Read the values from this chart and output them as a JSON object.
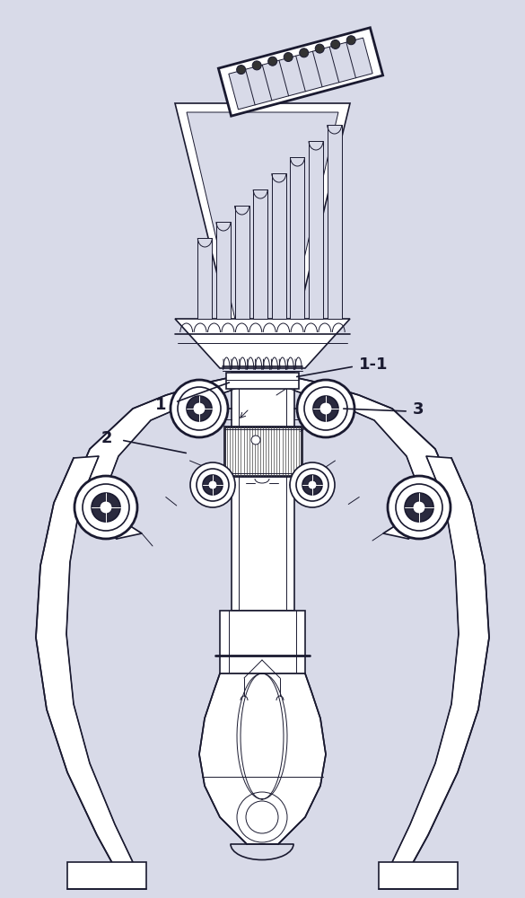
{
  "bg_color": "#d8dae8",
  "line_color": "#1a1a30",
  "figsize": [
    5.85,
    10.0
  ],
  "dpi": 100,
  "lw_thin": 0.7,
  "lw_med": 1.2,
  "lw_thick": 2.0
}
